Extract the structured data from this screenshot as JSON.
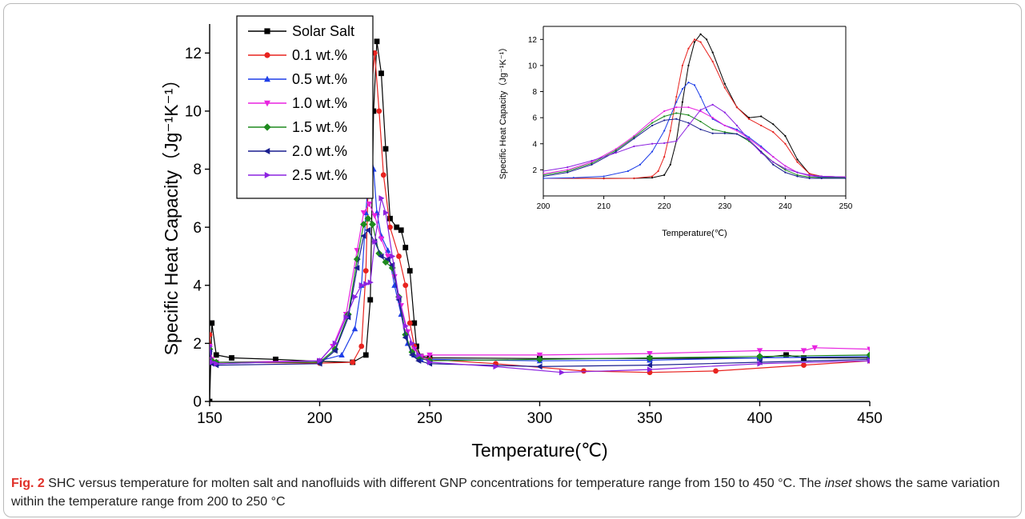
{
  "caption": {
    "label": "Fig. 2",
    "text_before_italic": " SHC versus temperature for molten salt and nanofluids with different GNP concentrations for temperature range from 150 to 450 °C. The ",
    "italic_word": "inset",
    "text_after_italic": " shows the same variation within the temperature range from 200 to 250 °C"
  },
  "chart_data": [
    {
      "type": "line",
      "xlabel": "Temperature(℃)",
      "ylabel": "Specific Heat Capacity（Jg⁻¹K⁻¹）",
      "xlim": [
        150,
        450
      ],
      "ylim": [
        0,
        13
      ],
      "xticks": [
        "150",
        "200",
        "250",
        "300",
        "350",
        "400",
        "450"
      ],
      "yticks": [
        "0",
        "2",
        "4",
        "6",
        "8",
        "10",
        "12"
      ],
      "legend_position": "top-left",
      "series": [
        {
          "name": "Solar Salt",
          "color": "#000000",
          "marker": "square",
          "x": [
            150,
            151,
            153,
            160,
            180,
            200,
            215,
            221,
            223,
            224.5,
            226,
            228,
            230,
            232,
            235,
            237,
            239,
            241,
            243,
            244,
            246,
            250,
            300,
            350,
            400,
            412,
            420,
            450
          ],
          "y": [
            0,
            2.7,
            1.6,
            1.5,
            1.45,
            1.38,
            1.35,
            1.6,
            3.5,
            10.0,
            12.4,
            11.3,
            8.7,
            6.3,
            6.0,
            5.9,
            5.3,
            4.5,
            2.7,
            1.9,
            1.55,
            1.5,
            1.48,
            1.48,
            1.5,
            1.6,
            1.5,
            1.5
          ]
        },
        {
          "name": "0.1 wt.%",
          "color": "#e8231f",
          "marker": "circle",
          "x": [
            150,
            151,
            153,
            200,
            215,
            219,
            221,
            223,
            225,
            227,
            229,
            232,
            236,
            239,
            241,
            243,
            246,
            250,
            280,
            320,
            350,
            380,
            420,
            450
          ],
          "y": [
            2.3,
            1.4,
            1.35,
            1.32,
            1.35,
            1.9,
            4.5,
            10.3,
            12.0,
            10.0,
            7.8,
            6.0,
            5.0,
            4.0,
            2.7,
            1.9,
            1.5,
            1.45,
            1.3,
            1.05,
            1.0,
            1.05,
            1.25,
            1.4
          ]
        },
        {
          "name": "0.5 wt.%",
          "color": "#1f3fe8",
          "marker": "triangle-up",
          "x": [
            150,
            151,
            153,
            200,
            210,
            216,
            219,
            221,
            223,
            224.5,
            226,
            228,
            231,
            234,
            237,
            240,
            243,
            246,
            250,
            300,
            350,
            400,
            450
          ],
          "y": [
            1.8,
            1.35,
            1.3,
            1.4,
            1.6,
            2.5,
            4.0,
            6.5,
            8.7,
            8.0,
            6.5,
            5.7,
            5.2,
            4.0,
            3.0,
            2.0,
            1.6,
            1.45,
            1.45,
            1.4,
            1.42,
            1.5,
            1.55
          ]
        },
        {
          "name": "1.0 wt.%",
          "color": "#e823e0",
          "marker": "triangle-down",
          "x": [
            150,
            151,
            153,
            200,
            206,
            212,
            217,
            220,
            222.5,
            225,
            228,
            231,
            234,
            237,
            240,
            243,
            246,
            250,
            300,
            350,
            400,
            420,
            425,
            450
          ],
          "y": [
            1.9,
            1.45,
            1.35,
            1.4,
            1.9,
            3.0,
            5.2,
            6.5,
            6.8,
            6.4,
            5.6,
            5.0,
            4.3,
            3.3,
            2.4,
            1.8,
            1.55,
            1.6,
            1.6,
            1.65,
            1.75,
            1.75,
            1.85,
            1.8
          ]
        },
        {
          "name": "1.5 wt.%",
          "color": "#1e8a1e",
          "marker": "diamond",
          "x": [
            150,
            151,
            153,
            200,
            207,
            213,
            217,
            220,
            222,
            224,
            227,
            230,
            233,
            236,
            239,
            242,
            245,
            250,
            300,
            350,
            400,
            450
          ],
          "y": [
            1.8,
            1.4,
            1.35,
            1.35,
            1.8,
            3.0,
            4.9,
            6.1,
            6.3,
            6.1,
            5.1,
            4.8,
            4.6,
            3.6,
            2.3,
            1.7,
            1.5,
            1.4,
            1.45,
            1.5,
            1.55,
            1.6
          ]
        },
        {
          "name": "2.0 wt.%",
          "color": "#1a1f8f",
          "marker": "triangle-left",
          "x": [
            150,
            151,
            153,
            200,
            207,
            213,
            217,
            220,
            222,
            225,
            228,
            231,
            233,
            236,
            239,
            242,
            245,
            250,
            300,
            350,
            400,
            450
          ],
          "y": [
            1.7,
            1.3,
            1.25,
            1.3,
            1.75,
            2.9,
            4.6,
            5.7,
            5.9,
            5.5,
            5.0,
            4.9,
            4.7,
            3.5,
            2.2,
            1.6,
            1.4,
            1.3,
            1.2,
            1.25,
            1.35,
            1.45
          ]
        },
        {
          "name": "2.5 wt.%",
          "color": "#8c23e0",
          "marker": "triangle-right",
          "x": [
            150,
            151,
            153,
            200,
            207,
            212,
            216,
            219,
            221,
            223,
            225,
            228,
            230,
            233,
            236,
            239,
            242,
            245,
            250,
            280,
            310,
            350,
            400,
            450
          ],
          "y": [
            1.9,
            1.35,
            1.3,
            1.4,
            2.0,
            2.9,
            3.6,
            4.0,
            4.05,
            4.1,
            5.5,
            7.0,
            6.5,
            5.0,
            3.6,
            2.6,
            2.0,
            1.6,
            1.35,
            1.2,
            1.0,
            1.1,
            1.3,
            1.4
          ]
        }
      ]
    },
    {
      "type": "line",
      "role": "inset",
      "xlabel": "Temperature(℃)",
      "ylabel": "Specific Heat Capacity（Jg⁻¹K⁻¹）",
      "xlim": [
        200,
        250
      ],
      "ylim": [
        0,
        13
      ],
      "xticks": [
        "200",
        "210",
        "220",
        "230",
        "240",
        "250"
      ],
      "yticks": [
        "2",
        "4",
        "6",
        "8",
        "10",
        "12"
      ],
      "series": [
        {
          "name": "Solar Salt",
          "color": "#000000",
          "x": [
            200,
            210,
            215,
            218,
            220,
            221,
            222,
            223,
            224,
            225,
            226,
            227,
            228,
            230,
            232,
            234,
            236,
            238,
            240,
            242,
            244,
            246,
            250
          ],
          "y": [
            1.35,
            1.35,
            1.35,
            1.4,
            1.6,
            2.4,
            4.2,
            7.2,
            10.0,
            11.8,
            12.4,
            12.0,
            11.0,
            8.6,
            6.8,
            6.0,
            6.1,
            5.5,
            4.6,
            2.8,
            1.7,
            1.5,
            1.45
          ]
        },
        {
          "name": "0.1 wt.%",
          "color": "#e8231f",
          "x": [
            200,
            210,
            215,
            218,
            219,
            220,
            221,
            222,
            223,
            224,
            225,
            226,
            228,
            230,
            232,
            234,
            236,
            238,
            240,
            242,
            244,
            246,
            250
          ],
          "y": [
            1.35,
            1.33,
            1.35,
            1.5,
            1.9,
            3.0,
            5.0,
            7.6,
            10.0,
            11.3,
            12.0,
            11.8,
            10.3,
            8.3,
            6.8,
            5.9,
            5.4,
            4.9,
            4.0,
            2.6,
            1.7,
            1.5,
            1.45
          ]
        },
        {
          "name": "0.5 wt.%",
          "color": "#1f3fe8",
          "x": [
            200,
            205,
            210,
            214,
            216,
            218,
            220,
            222,
            223,
            224,
            225,
            226,
            227,
            228,
            230,
            232,
            234,
            236,
            238,
            240,
            242,
            244,
            246,
            250
          ],
          "y": [
            1.35,
            1.4,
            1.5,
            1.9,
            2.4,
            3.4,
            5.0,
            7.2,
            8.2,
            8.7,
            8.5,
            7.6,
            6.6,
            5.9,
            5.4,
            5.1,
            4.5,
            3.8,
            3.0,
            2.3,
            1.8,
            1.55,
            1.45,
            1.4
          ]
        },
        {
          "name": "1.0 wt.%",
          "color": "#e823e0",
          "x": [
            200,
            204,
            208,
            212,
            215,
            218,
            220,
            222,
            224,
            226,
            228,
            230,
            232,
            234,
            236,
            238,
            240,
            242,
            244,
            246,
            250
          ],
          "y": [
            1.7,
            2.0,
            2.6,
            3.6,
            4.6,
            5.8,
            6.5,
            6.8,
            6.8,
            6.5,
            6.0,
            5.4,
            5.0,
            4.4,
            3.7,
            3.0,
            2.3,
            1.8,
            1.55,
            1.5,
            1.45
          ]
        },
        {
          "name": "1.5 wt.%",
          "color": "#1e8a1e",
          "x": [
            200,
            204,
            208,
            212,
            215,
            218,
            220,
            222,
            224,
            226,
            228,
            230,
            232,
            234,
            236,
            238,
            240,
            242,
            244,
            246,
            250
          ],
          "y": [
            1.6,
            1.9,
            2.5,
            3.5,
            4.5,
            5.6,
            6.1,
            6.35,
            6.2,
            5.7,
            5.1,
            4.9,
            4.75,
            4.2,
            3.4,
            2.6,
            2.0,
            1.6,
            1.45,
            1.4,
            1.4
          ]
        },
        {
          "name": "2.0 wt.%",
          "color": "#1a1f8f",
          "x": [
            200,
            204,
            208,
            212,
            215,
            218,
            220,
            222,
            224,
            226,
            228,
            230,
            232,
            234,
            236,
            238,
            240,
            242,
            244,
            246,
            250
          ],
          "y": [
            1.5,
            1.8,
            2.4,
            3.4,
            4.4,
            5.4,
            5.8,
            5.9,
            5.6,
            5.1,
            4.8,
            4.8,
            4.75,
            4.3,
            3.4,
            2.4,
            1.8,
            1.5,
            1.35,
            1.35,
            1.35
          ]
        },
        {
          "name": "2.5 wt.%",
          "color": "#8c23e0",
          "x": [
            200,
            204,
            208,
            212,
            215,
            218,
            220,
            222,
            224,
            226,
            228,
            230,
            232,
            234,
            236,
            238,
            240,
            242,
            244,
            246,
            250
          ],
          "y": [
            1.9,
            2.2,
            2.7,
            3.3,
            3.8,
            4.0,
            4.05,
            4.2,
            5.4,
            6.6,
            7.0,
            6.4,
            5.4,
            4.3,
            3.3,
            2.6,
            2.1,
            1.8,
            1.6,
            1.5,
            1.45
          ]
        }
      ]
    }
  ]
}
